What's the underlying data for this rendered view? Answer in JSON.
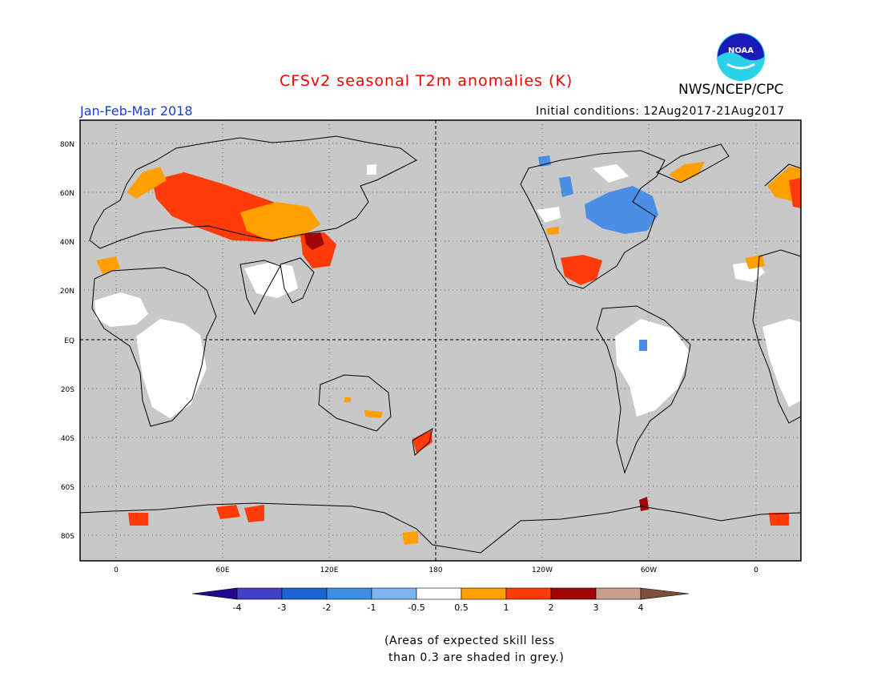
{
  "map": {
    "title": "CFSv2 seasonal T2m anomalies (K)",
    "period": "Jan-Feb-Mar 2018",
    "initial_conditions": "Initial conditions: 12Aug2017-21Aug2017",
    "agency": "NWS/NCEP/CPC",
    "logo_text": "NOAA",
    "lat_labels": [
      "80N",
      "60N",
      "40N",
      "20N",
      "EQ",
      "20S",
      "40S",
      "60S",
      "80S"
    ],
    "lon_labels": [
      "0",
      "60E",
      "120E",
      "180",
      "120W",
      "60W",
      "0"
    ],
    "note": "(Areas of expected skill less\n than 0.3 are shaded in grey.)"
  },
  "colorbar": {
    "labels": [
      "-4",
      "-3",
      "-2",
      "-1",
      "-0.5",
      "0.5",
      "1",
      "2",
      "3",
      "4"
    ],
    "colors": [
      "#22078f",
      "#4040c8",
      "#1c64d3",
      "#3e8ee8",
      "#79b5f0",
      "#ffffff",
      "#ff9f00",
      "#ff3b0a",
      "#a10606",
      "#c89e8c",
      "#7c4f3c"
    ]
  },
  "colors": {
    "ocean": "#c8c8c8",
    "land_skill": "#ffffff",
    "title": "#ff0000",
    "period": "#1a3fd8"
  }
}
